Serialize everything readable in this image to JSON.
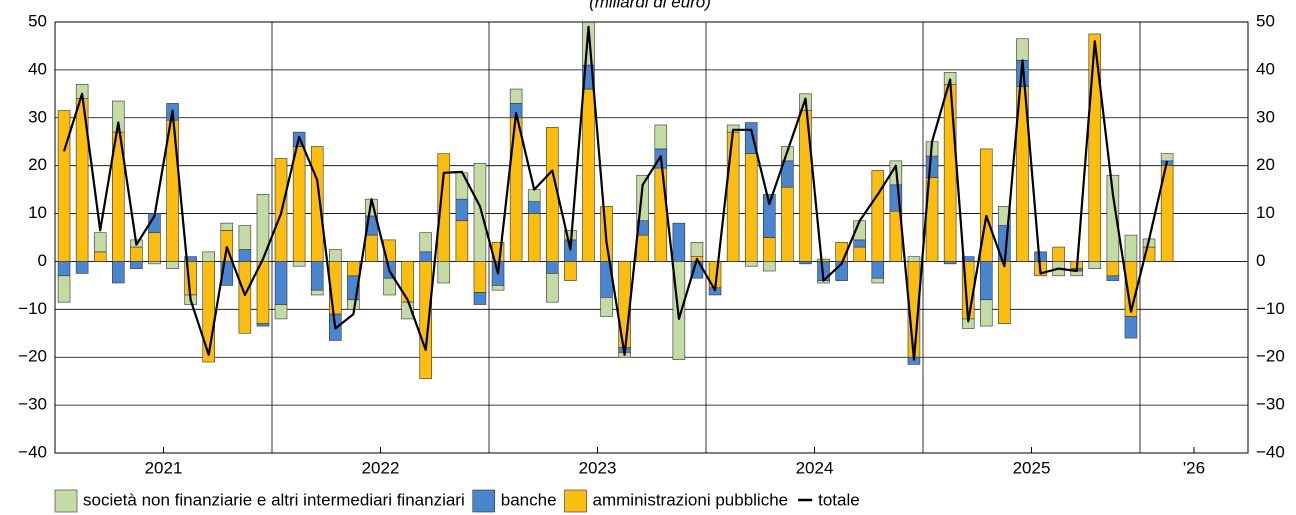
{
  "chart_data": {
    "type": "bar",
    "subtitle": "(miliardi di euro)",
    "categories": [
      "2021",
      null,
      null,
      null,
      null,
      null,
      null,
      null,
      null,
      null,
      null,
      null,
      "2022",
      null,
      null,
      null,
      null,
      null,
      null,
      null,
      null,
      null,
      null,
      null,
      "2023",
      null,
      null,
      null,
      null,
      null,
      null,
      null,
      null,
      null,
      null,
      null,
      "2024",
      null,
      null,
      null,
      null,
      null,
      null,
      null,
      null,
      null,
      null,
      null,
      "2025",
      null,
      null,
      null,
      null,
      null,
      null,
      null,
      null,
      null,
      null,
      null,
      "'26",
      null
    ],
    "series": [
      {
        "name": "società non finanziarie e altri intermediari finanziari",
        "color": "#c4dba5",
        "values": [
          -5.5,
          3,
          4,
          6.5,
          1.5,
          -0.5,
          -1.5,
          -2,
          2,
          1.5,
          5,
          14,
          -3,
          -1,
          -1,
          2.5,
          -2,
          3.5,
          -3.5,
          -3.5,
          4,
          -4.5,
          5.5,
          20.5,
          -1,
          3,
          2.5,
          -6,
          2,
          11,
          -4,
          -1,
          9.5,
          5,
          -20.5,
          3,
          0,
          1.5,
          -1,
          -2,
          3,
          3.5,
          -0.5,
          0,
          4,
          -1,
          5,
          1,
          3,
          2.5,
          -2,
          -5.5,
          4,
          4.5,
          0,
          -3,
          -1,
          -1.5,
          18,
          5.5,
          1.7,
          1.5
        ]
      },
      {
        "name": "banche",
        "color": "#4a86d0",
        "values": [
          -3,
          -2.5,
          0,
          -4.5,
          -1.5,
          4,
          3.5,
          1,
          0,
          -5,
          2.5,
          -0.5,
          -9,
          3,
          -6,
          -5.5,
          -5,
          4,
          -3.5,
          0,
          2,
          0,
          4.5,
          -2.5,
          -5,
          3,
          2.5,
          -2.5,
          4.5,
          5,
          -7.5,
          -1,
          3,
          4,
          8,
          -3.5,
          -1.5,
          0,
          6.5,
          9,
          5.5,
          -0.5,
          -4,
          -4,
          1.5,
          -3.5,
          5.5,
          -1.5,
          4.5,
          -0.5,
          1,
          -8,
          7.5,
          5.5,
          2,
          0,
          -0.5,
          0,
          -1,
          -4.5,
          0,
          1
        ]
      },
      {
        "name": "amministrazioni pubbliche",
        "color": "#fbbd10",
        "values": [
          31.5,
          34,
          2,
          27,
          3,
          6,
          29.5,
          -7,
          -21,
          6.5,
          -15,
          -13,
          21.5,
          24,
          24,
          -11,
          -3,
          5.5,
          4.5,
          -8.5,
          -24.5,
          22.5,
          8.5,
          -6.5,
          4,
          30,
          10,
          28,
          -4,
          36,
          11.5,
          -18,
          5.5,
          19.5,
          0,
          1,
          -5.5,
          27,
          22.5,
          5,
          15.5,
          31.5,
          0.5,
          4,
          3,
          19,
          10.5,
          -20,
          17.5,
          37,
          -12,
          23.5,
          -13,
          36.5,
          -3,
          3,
          -1.5,
          47.5,
          -3,
          -11.5,
          3,
          20
        ]
      },
      {
        "name": "totale",
        "type": "line",
        "color": "#000000",
        "values": [
          23,
          35,
          6.5,
          29,
          3.5,
          9.5,
          31.5,
          -8,
          -19.5,
          3,
          -7,
          0.5,
          10,
          26,
          17,
          -14,
          -11,
          13,
          -2,
          -8,
          -18.5,
          18.5,
          18.7,
          11.5,
          -2.5,
          31,
          15,
          19,
          2.5,
          49,
          4,
          -19.5,
          16,
          22,
          -12,
          0.5,
          -6,
          27.5,
          27.5,
          12,
          23,
          34,
          -4,
          -0.5,
          8.5,
          14,
          20,
          -20.5,
          25,
          38,
          -12.5,
          9.5,
          -1,
          42,
          -2.5,
          -1.5,
          -2,
          46,
          14,
          -10.5,
          4.5,
          21
        ]
      }
    ],
    "ylim": [
      -40,
      50
    ],
    "yticks": [
      {
        "value": -40,
        "label": "−40"
      },
      {
        "value": -30,
        "label": "−30"
      },
      {
        "value": -20,
        "label": "−20"
      },
      {
        "value": -10,
        "label": "−10"
      },
      0,
      10,
      20,
      30,
      40,
      50
    ],
    "grid": true
  }
}
